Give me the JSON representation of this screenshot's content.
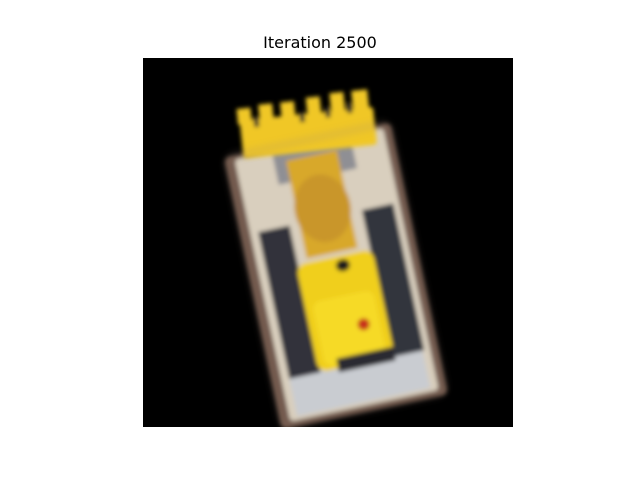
{
  "figure": {
    "title": "Iteration 2500"
  },
  "image": {
    "subject": "toy-bulldozer-render",
    "background_color": "#000000",
    "colors": {
      "body_yellow": "#f2d21c",
      "base_beige": "#d6ccb8",
      "track_dark": "#3a3a44",
      "base_brown": "#7a5a4a",
      "light_red": "#c8301a"
    }
  }
}
